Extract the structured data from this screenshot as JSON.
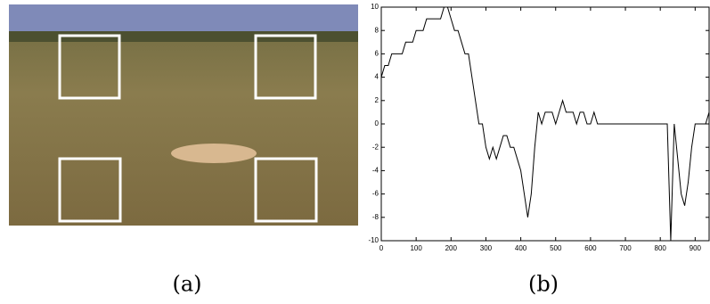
{
  "panels": [
    {
      "caption": "(a)"
    },
    {
      "caption": "(b)"
    }
  ],
  "chart_data": {
    "type": "line",
    "x": [
      0,
      10,
      20,
      30,
      40,
      50,
      60,
      70,
      80,
      90,
      100,
      110,
      120,
      130,
      140,
      150,
      160,
      170,
      180,
      190,
      200,
      210,
      220,
      230,
      240,
      250,
      260,
      270,
      280,
      290,
      300,
      310,
      320,
      330,
      340,
      350,
      360,
      370,
      380,
      390,
      400,
      410,
      420,
      430,
      440,
      450,
      460,
      470,
      480,
      490,
      500,
      510,
      520,
      530,
      540,
      550,
      560,
      570,
      580,
      590,
      600,
      610,
      620,
      630,
      640,
      650,
      660,
      670,
      680,
      690,
      700,
      710,
      720,
      730,
      740,
      750,
      760,
      770,
      780,
      790,
      800,
      810,
      820,
      830,
      840,
      850,
      860,
      870,
      880,
      890,
      900,
      910,
      920,
      930,
      940
    ],
    "values": [
      4,
      5,
      5,
      6,
      6,
      6,
      6,
      7,
      7,
      7,
      8,
      8,
      8,
      9,
      9,
      9,
      9,
      9,
      10,
      10,
      9,
      8,
      8,
      7,
      6,
      6,
      4,
      2,
      0,
      0,
      -2,
      -3,
      -2,
      -3,
      -2,
      -1,
      -1,
      -2,
      -2,
      -3,
      -4,
      -6,
      -8,
      -6,
      -2,
      1,
      0,
      1,
      1,
      1,
      0,
      1,
      2,
      1,
      1,
      1,
      0,
      1,
      1,
      0,
      0,
      1,
      0,
      0,
      0,
      0,
      0,
      0,
      0,
      0,
      0,
      0,
      0,
      0,
      0,
      0,
      0,
      0,
      0,
      0,
      0,
      0,
      0,
      -10,
      0,
      -3,
      -6,
      -7,
      -5,
      -2,
      0,
      0,
      0,
      0,
      1
    ],
    "color": "#000000",
    "xlim": [
      0,
      940
    ],
    "ylim": [
      -10,
      10
    ],
    "xticks": [
      0,
      100,
      200,
      300,
      400,
      500,
      600,
      700,
      800,
      900
    ],
    "yticks": [
      -10,
      -8,
      -6,
      -4,
      -2,
      0,
      2,
      4,
      6,
      8,
      10
    ]
  }
}
